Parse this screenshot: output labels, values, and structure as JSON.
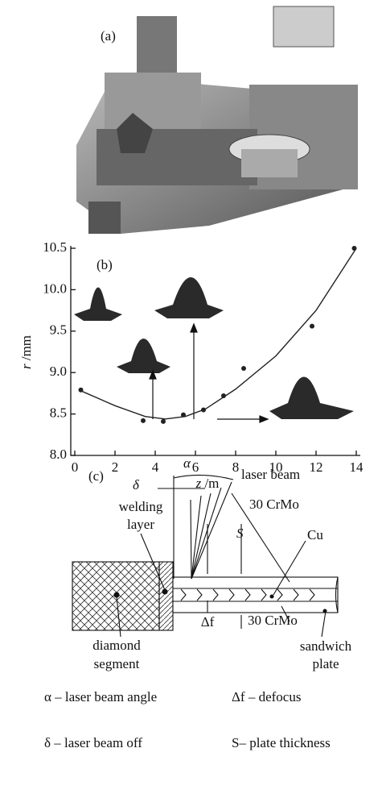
{
  "panel_a": {
    "label": "(a)"
  },
  "chart_data": {
    "type": "scatter",
    "label": "(b)",
    "x_label_var": "z",
    "x_label_unit": "/m",
    "y_label_var": "r",
    "y_label_unit": "/mm",
    "xlim": [
      0,
      14
    ],
    "xticks": [
      0,
      2,
      4,
      6,
      8,
      10,
      12,
      14
    ],
    "ylim": [
      8,
      10.5
    ],
    "yticks": [
      {
        "value": 8,
        "label": "8.0"
      },
      8.5,
      {
        "value": 9,
        "label": "9.0"
      },
      9.5,
      {
        "value": 10,
        "label": "10.0"
      },
      10.5
    ],
    "series": [
      {
        "type": "scatter",
        "color": "#222",
        "x": [
          0.3,
          3.4,
          4.4,
          5.4,
          6.4,
          7.4,
          8.4,
          11.8,
          13.9
        ],
        "values": [
          8.79,
          8.42,
          8.41,
          8.49,
          8.55,
          8.72,
          9.05,
          9.56,
          10.5
        ]
      },
      {
        "type": "line",
        "color": "#222",
        "x": [
          0.3,
          2,
          3.5,
          4.5,
          5.5,
          6.5,
          8,
          10,
          12,
          14
        ],
        "values": [
          8.78,
          8.6,
          8.47,
          8.44,
          8.47,
          8.56,
          8.8,
          9.2,
          9.75,
          10.5
        ]
      }
    ]
  },
  "panel_c": {
    "label": "(c)",
    "alpha": "α",
    "laser_beam": "laser beam",
    "delta": "δ",
    "crmo_top": "30 CrMo",
    "welding": "welding",
    "layer": "layer",
    "s": "S",
    "cu": "Cu",
    "diamond": "diamond",
    "segment": "segment",
    "delta_f": "Δf",
    "crmo_bottom": "30 CrMo",
    "sandwich": "sandwich",
    "plate": "plate",
    "legend": [
      "α – laser beam angle",
      "Δf – defocus",
      "δ – laser beam off",
      "S– plate thickness"
    ]
  }
}
